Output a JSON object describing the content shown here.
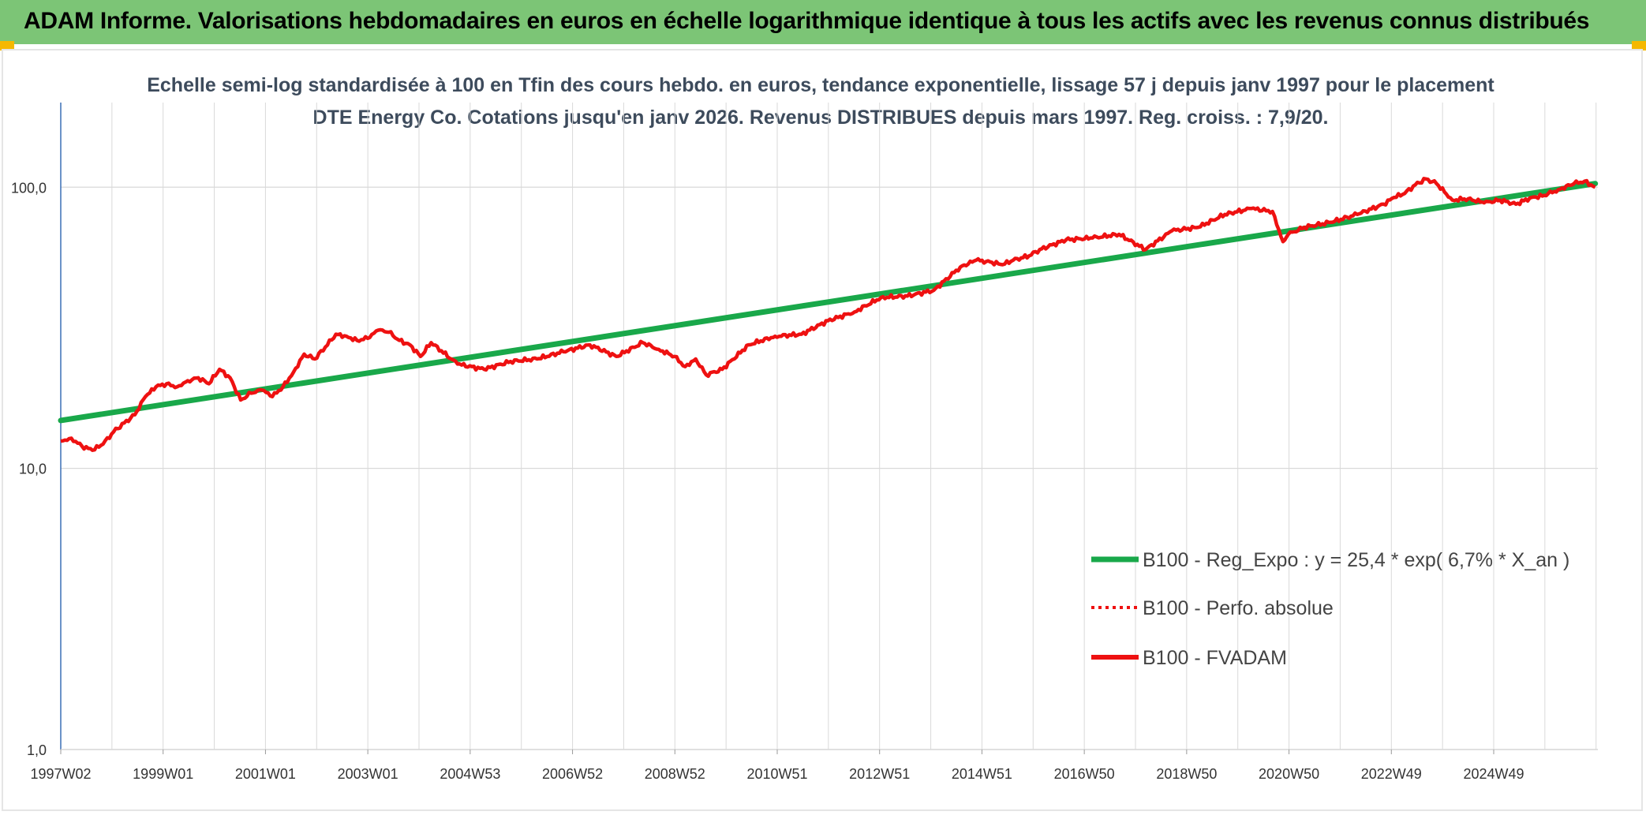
{
  "header": {
    "title": "ADAM Informe. Valorisations hebdomadaires en euros en échelle logarithmique identique à tous les actifs avec les revenus connus distribués"
  },
  "colors": {
    "header_bg": "#7cc576",
    "regression": "#19a84a",
    "series": "#ee1111",
    "axis": "#3a6fb5",
    "grid": "#d9d9d9"
  },
  "chart_data": {
    "type": "line",
    "title": "Echelle semi-log standardisée à 100 en Tfin des cours hebdo. en euros, tendance exponentielle, lissage 57 j depuis janv 1997 pour le placement DTE Energy Co. Cotations jusqu'en janv 2026. Revenus DISTRIBUES depuis mars 1997. Reg. croiss. : 7,9/20.",
    "y_scale": "log",
    "ylim": [
      1,
      200
    ],
    "y_ticks": [
      "1,0",
      "10,0",
      "100,0"
    ],
    "x_range": [
      1997.0,
      2026.05
    ],
    "x_tick_labels": [
      "1997W02",
      "1999W01",
      "2001W01",
      "2003W01",
      "2004W53",
      "2006W52",
      "2008W52",
      "2010W51",
      "2012W51",
      "2014W51",
      "2016W50",
      "2018W50",
      "2020W50",
      "2022W49",
      "2024W49"
    ],
    "legend": {
      "position": "bottom-right",
      "entries": [
        {
          "label": "B100 - Reg_Expo : y = 25,4 * exp( 6,7% *  X_an )",
          "style": "solid-thick",
          "color": "#19a84a"
        },
        {
          "label": "B100 - Perfo. absolue",
          "style": "dotted",
          "color": "#ee1111"
        },
        {
          "label": "B100 - FVADAM",
          "style": "solid",
          "color": "#ee1111"
        }
      ]
    },
    "series": [
      {
        "name": "B100 - Reg_Expo : y = 25,4 * exp( 6,7% *  X_an )",
        "x": [
          1997.0,
          2026.0
        ],
        "y": [
          14.8,
          103
        ]
      },
      {
        "name": "B100 - FVADAM",
        "x": [
          1997.0,
          1997.2,
          1997.4,
          1997.6,
          1997.8,
          1998.0,
          1998.2,
          1998.4,
          1998.6,
          1998.8,
          1999.0,
          1999.2,
          1999.4,
          1999.6,
          1999.8,
          2000.0,
          2000.2,
          2000.4,
          2000.6,
          2000.8,
          2001.0,
          2001.2,
          2001.4,
          2001.6,
          2001.8,
          2002.0,
          2002.2,
          2002.4,
          2002.6,
          2002.8,
          2003.0,
          2003.2,
          2003.4,
          2003.6,
          2003.8,
          2004.0,
          2004.5,
          2005.0,
          2005.5,
          2006.0,
          2006.5,
          2007.0,
          2007.5,
          2008.0,
          2008.3,
          2008.6,
          2008.8,
          2009.0,
          2009.2,
          2009.5,
          2010.0,
          2010.5,
          2011.0,
          2011.5,
          2012.0,
          2012.5,
          2013.0,
          2013.5,
          2014.0,
          2014.3,
          2014.6,
          2014.8,
          2015.0,
          2015.3,
          2015.5,
          2016.0,
          2016.5,
          2017.0,
          2017.5,
          2018.0,
          2018.5,
          2019.0,
          2019.5,
          2019.9,
          2020.1,
          2020.2,
          2020.5,
          2021.0,
          2021.5,
          2022.0,
          2022.2,
          2022.4,
          2022.6,
          2022.8,
          2023.0,
          2023.3,
          2023.6,
          2023.9,
          2024.2,
          2024.5,
          2024.8,
          2025.0,
          2025.3,
          2025.6,
          2025.8,
          2026.0
        ],
        "y": [
          12.5,
          12.8,
          12.0,
          11.6,
          12.2,
          13.5,
          14.5,
          15.5,
          18.0,
          19.5,
          20.0,
          19.5,
          20.5,
          21.0,
          20.0,
          22.5,
          21.0,
          17.5,
          18.5,
          19.0,
          18.0,
          19.5,
          22.0,
          25.5,
          24.5,
          27.0,
          30.0,
          29.5,
          28.5,
          29.0,
          31.0,
          30.5,
          28.5,
          27.5,
          25.0,
          28.0,
          23.5,
          22.5,
          24.0,
          24.5,
          26.0,
          27.5,
          25.0,
          28.0,
          26.5,
          25.0,
          23.0,
          24.5,
          21.5,
          22.5,
          27.5,
          29.5,
          30.0,
          33.5,
          36.0,
          40.5,
          41.0,
          43.0,
          52.0,
          55.0,
          54.0,
          53.0,
          55.0,
          57.0,
          60.0,
          65.0,
          66.0,
          68.0,
          60.0,
          70.0,
          72.0,
          80.0,
          84.0,
          82.0,
          64.0,
          68.0,
          72.0,
          75.0,
          80.0,
          87.0,
          92.0,
          95.0,
          102.0,
          107.0,
          103.0,
          90.0,
          91.0,
          88.0,
          90.0,
          87.0,
          92.0,
          93.0,
          98.0,
          103.0,
          105.0,
          100.0
        ]
      }
    ]
  }
}
